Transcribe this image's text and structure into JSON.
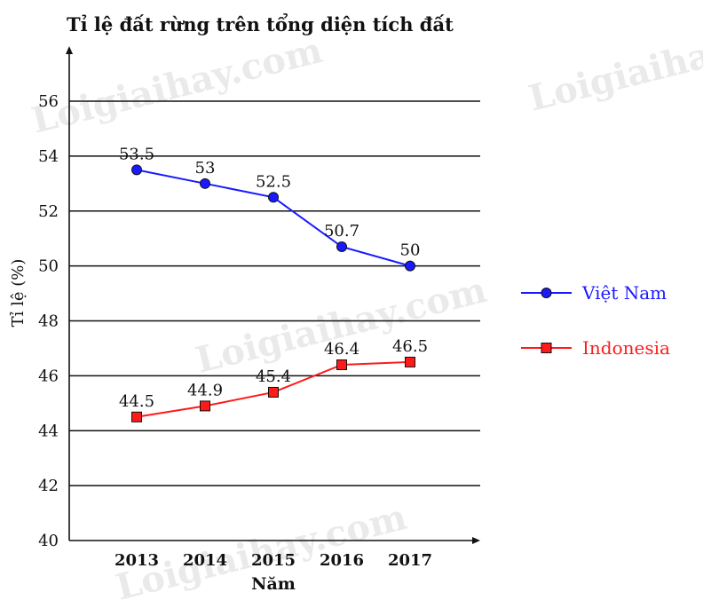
{
  "chart_data": {
    "type": "line",
    "title": "Tỉ lệ đất rừng trên tổng diện tích đất",
    "xlabel": "Năm",
    "ylabel": "Tỉ lệ (%)",
    "categories": [
      "2013",
      "2014",
      "2015",
      "2016",
      "2017"
    ],
    "ylim": [
      40,
      56
    ],
    "yticks": [
      40,
      42,
      44,
      46,
      48,
      50,
      52,
      54,
      56
    ],
    "grid": true,
    "legend_position": "right",
    "series": [
      {
        "name": "Việt Nam",
        "values": [
          53.5,
          53,
          52.5,
          50.7,
          50
        ],
        "labels": [
          "53.5",
          "53",
          "52.5",
          "50.7",
          "50"
        ],
        "color": "#1a1aff",
        "marker": "circle"
      },
      {
        "name": "Indonesia",
        "values": [
          44.5,
          44.9,
          45.4,
          46.4,
          46.5
        ],
        "labels": [
          "44.5",
          "44.9",
          "45.4",
          "46.4",
          "46.5"
        ],
        "color": "#ff1a1a",
        "marker": "square"
      }
    ]
  },
  "watermark": "Loigiaihay.com"
}
